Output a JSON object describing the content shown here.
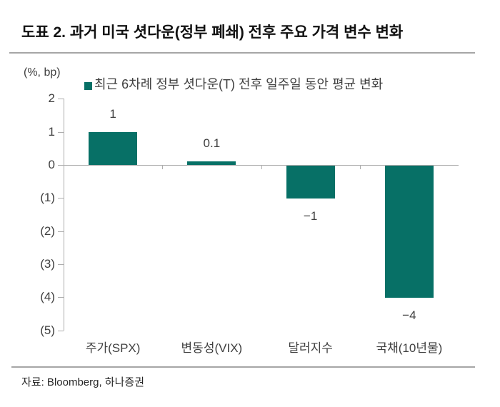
{
  "title": "도표 2. 과거 미국 셧다운(정부 폐쇄) 전후 주요 가격 변수 변화",
  "unit_label": "(%, bp)",
  "legend": {
    "marker_color": "#077066",
    "label": "최근 6차례 정부 셧다운(T) 전후 일주일 동안 평균 변화"
  },
  "source_note": "자료: Bloomberg, 하나증권",
  "colors": {
    "bar": "#077066",
    "axis": "#adadad",
    "divider": "#a6a6a6",
    "text": "#404040"
  },
  "chart_data": {
    "type": "bar",
    "categories": [
      "주가(SPX)",
      "변동성(VIX)",
      "달러지수",
      "국채(10년물)"
    ],
    "values": [
      1,
      0.1,
      -1,
      -4
    ],
    "value_labels": [
      "1",
      "0.1",
      "−1",
      "−4"
    ],
    "title": "도표 2. 과거 미국 셧다운(정부 폐쇄) 전후 주요 가격 변수 변화",
    "xlabel": "",
    "ylabel": "(%, bp)",
    "ylim": [
      -5,
      2
    ],
    "yticks": [
      2,
      1,
      0,
      -1,
      -2,
      -3,
      -4,
      -5
    ],
    "ytick_labels": [
      "2",
      "1",
      "0",
      "(1)",
      "(2)",
      "(3)",
      "(4)",
      "(5)"
    ],
    "legend_entries": [
      "최근 6차례 정부 셧다운(T) 전후 일주일 동안 평균 변화"
    ],
    "legend_position": "top",
    "grid": false
  }
}
